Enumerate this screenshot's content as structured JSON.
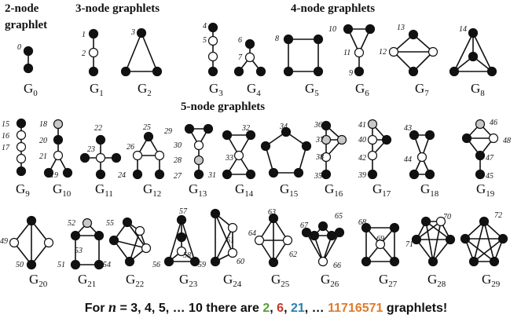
{
  "headers": {
    "two_node_line1": "2-node",
    "two_node_line2": "graphlet",
    "three_node": "3-node graphlets",
    "four_node": "4-node graphlets",
    "five_node": "5-node graphlets"
  },
  "colors": {
    "node_fill": "#111111",
    "orbit_white": "#ffffff",
    "orbit_grey": "#c8c8c8",
    "count_2": "#5a9e3a",
    "count_6": "#c0392b",
    "count_21": "#2a7fb0",
    "count_big": "#e07b2a"
  },
  "graphlets": [
    {
      "name": "G",
      "index": "0",
      "orbits": [
        "0"
      ]
    },
    {
      "name": "G",
      "index": "1",
      "orbits": [
        "1",
        "2"
      ]
    },
    {
      "name": "G",
      "index": "2",
      "orbits": [
        "3"
      ]
    },
    {
      "name": "G",
      "index": "3",
      "orbits": [
        "4",
        "5"
      ]
    },
    {
      "name": "G",
      "index": "4",
      "orbits": [
        "6",
        "7"
      ]
    },
    {
      "name": "G",
      "index": "5",
      "orbits": [
        "8"
      ]
    },
    {
      "name": "G",
      "index": "6",
      "orbits": [
        "10",
        "11",
        "9"
      ]
    },
    {
      "name": "G",
      "index": "7",
      "orbits": [
        "13",
        "12"
      ]
    },
    {
      "name": "G",
      "index": "8",
      "orbits": [
        "14"
      ]
    },
    {
      "name": "G",
      "index": "9",
      "orbits": [
        "15",
        "16",
        "17"
      ]
    },
    {
      "name": "G",
      "index": "10",
      "orbits": [
        "18",
        "20",
        "21",
        "19"
      ]
    },
    {
      "name": "G",
      "index": "11",
      "orbits": [
        "22",
        "23"
      ]
    },
    {
      "name": "G",
      "index": "12",
      "orbits": [
        "25",
        "26",
        "24"
      ]
    },
    {
      "name": "G",
      "index": "13",
      "orbits": [
        "29",
        "30",
        "28",
        "27"
      ]
    },
    {
      "name": "G",
      "index": "14",
      "orbits": [
        "32",
        "33",
        "31"
      ]
    },
    {
      "name": "G",
      "index": "15",
      "orbits": [
        "34"
      ]
    },
    {
      "name": "G",
      "index": "16",
      "orbits": [
        "36",
        "37",
        "38",
        "35"
      ]
    },
    {
      "name": "G",
      "index": "17",
      "orbits": [
        "41",
        "40",
        "42",
        "39"
      ]
    },
    {
      "name": "G",
      "index": "18",
      "orbits": [
        "43",
        "44"
      ]
    },
    {
      "name": "G",
      "index": "19",
      "orbits": [
        "46",
        "48",
        "47",
        "45"
      ]
    },
    {
      "name": "G",
      "index": "20",
      "orbits": [
        "49",
        "50"
      ]
    },
    {
      "name": "G",
      "index": "21",
      "orbits": [
        "52",
        "53",
        "51"
      ]
    },
    {
      "name": "G",
      "index": "22",
      "orbits": [
        "55",
        "54"
      ]
    },
    {
      "name": "G",
      "index": "23",
      "orbits": [
        "57",
        "58",
        "56"
      ]
    },
    {
      "name": "G",
      "index": "24",
      "orbits": [
        "61",
        "60",
        "59"
      ]
    },
    {
      "name": "G",
      "index": "25",
      "orbits": [
        "63",
        "64",
        "62"
      ]
    },
    {
      "name": "G",
      "index": "26",
      "orbits": [
        "67",
        "65",
        "66"
      ]
    },
    {
      "name": "G",
      "index": "27",
      "orbits": [
        "68",
        "69"
      ]
    },
    {
      "name": "G",
      "index": "28",
      "orbits": [
        "70",
        "71"
      ]
    },
    {
      "name": "G",
      "index": "29",
      "orbits": [
        "72"
      ]
    }
  ],
  "footer": {
    "prefix": "For",
    "var": "n",
    "eq": "= 3, 4, 5, … 10 there are",
    "c2": "2",
    "c6": "6",
    "c21": "21",
    "dots": "…",
    "big": "11716571",
    "suffix": "graphlets!"
  }
}
